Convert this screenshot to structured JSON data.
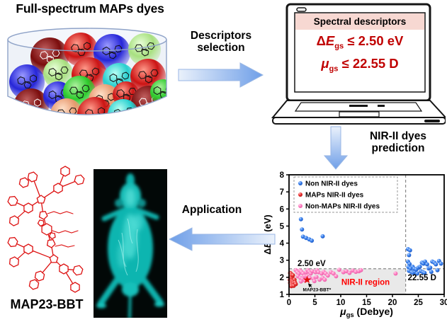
{
  "title": "Full-spectrum MAPs dyes",
  "steps": {
    "descriptors": [
      "Descriptors",
      "selection"
    ],
    "prediction": [
      "NIR-II dyes",
      "prediction"
    ],
    "application": "Application"
  },
  "laptop": {
    "header": "Spectral descriptors",
    "eq1": {
      "delta": "Δ",
      "var": "E",
      "sub": "gs",
      "rest": " ≤ 2.50 eV"
    },
    "eq2": {
      "var": "μ",
      "sub": "gs",
      "rest": " ≤ 22.55 D"
    }
  },
  "molecule_label": "MAP23-BBT",
  "dye_container": {
    "palette": [
      {
        "name": "dark-red",
        "base": "#7a0c0c",
        "light": "#c06060",
        "glyph": "#ffffff"
      },
      {
        "name": "red",
        "base": "#cc1414",
        "light": "#ff9a8a",
        "glyph": "#111111"
      },
      {
        "name": "blue",
        "base": "#2626d8",
        "light": "#9a9aff",
        "glyph": "#111111"
      },
      {
        "name": "green",
        "base": "#2ecc2e",
        "light": "#b0f0a0",
        "glyph": "#111111"
      },
      {
        "name": "light-green",
        "base": "#a8e080",
        "light": "#e8ffd8",
        "glyph": "#111111"
      },
      {
        "name": "cyan",
        "base": "#28cfcf",
        "light": "#b8fff4",
        "glyph": "#111111"
      },
      {
        "name": "peach",
        "base": "#e89a70",
        "light": "#ffe0c8",
        "glyph": "#111111"
      }
    ]
  },
  "chart_data": {
    "type": "scatter",
    "xlabel": {
      "var": "μ",
      "sub": "gs",
      "rest": " (Debye)"
    },
    "ylabel": {
      "delta": "Δ",
      "var": "E",
      "sub": "gs",
      "rest": " (eV)"
    },
    "xlim": [
      0,
      30
    ],
    "ylim": [
      1,
      8
    ],
    "xticks": [
      0,
      5,
      10,
      15,
      20,
      25,
      30
    ],
    "yticks": [
      1,
      2,
      3,
      4,
      5,
      6,
      7,
      8
    ],
    "grid": false,
    "legend_position": "top-left",
    "thresholds": {
      "x": 22.55,
      "y": 2.5
    },
    "threshold_labels": {
      "x": "22.55 D",
      "y": "2.50 eV"
    },
    "region_label": "NIR-II region",
    "region_color": "#ff0000",
    "region_fill": "#e9e9e9",
    "series": [
      {
        "name": "Non NIR-II dyes",
        "color": "#3b82ee",
        "light": "#bcd8ff",
        "dark": "#1c56c0",
        "points": [
          [
            2.3,
            5.4
          ],
          [
            2.5,
            4.8
          ],
          [
            2.7,
            4.38
          ],
          [
            3.3,
            4.3
          ],
          [
            3.9,
            4.22
          ],
          [
            4.4,
            4.15
          ],
          [
            6.5,
            4.4
          ],
          [
            23.0,
            3.65
          ],
          [
            23.4,
            3.58
          ],
          [
            23.2,
            3.3
          ],
          [
            23.0,
            2.92
          ],
          [
            23.3,
            2.78
          ],
          [
            23.1,
            2.6
          ],
          [
            23.5,
            2.52
          ],
          [
            23.2,
            2.38
          ],
          [
            23.7,
            2.3
          ],
          [
            24.0,
            2.26
          ],
          [
            24.3,
            2.32
          ],
          [
            23.9,
            2.62
          ],
          [
            24.2,
            2.5
          ],
          [
            24.6,
            2.46
          ],
          [
            25.0,
            2.56
          ],
          [
            25.3,
            2.62
          ],
          [
            25.7,
            2.86
          ],
          [
            26.0,
            2.8
          ],
          [
            26.3,
            2.92
          ],
          [
            26.7,
            2.76
          ],
          [
            25.5,
            2.36
          ],
          [
            25.9,
            2.3
          ],
          [
            26.2,
            2.26
          ],
          [
            27.0,
            2.52
          ],
          [
            27.3,
            2.56
          ],
          [
            27.7,
            2.92
          ],
          [
            28.1,
            2.86
          ],
          [
            28.4,
            2.76
          ],
          [
            29.0,
            2.96
          ],
          [
            29.4,
            2.8
          ],
          [
            28.7,
            2.42
          ],
          [
            27.5,
            2.32
          ],
          [
            24.8,
            2.22
          ]
        ]
      },
      {
        "name": "MAPs NIR-II dyes",
        "color": "#ee3333",
        "light": "#ffc4c4",
        "dark": "#b81414",
        "points": [
          [
            0.2,
            2.25
          ],
          [
            0.4,
            2.2
          ],
          [
            0.3,
            2.1
          ],
          [
            0.55,
            2.05
          ],
          [
            0.2,
            2.0
          ],
          [
            0.65,
            1.95
          ],
          [
            0.4,
            1.9
          ],
          [
            0.15,
            1.85
          ],
          [
            0.5,
            1.8
          ],
          [
            0.3,
            1.74
          ],
          [
            0.75,
            1.76
          ],
          [
            0.2,
            1.68
          ],
          [
            0.5,
            1.64
          ],
          [
            0.85,
            1.66
          ],
          [
            0.3,
            1.58
          ],
          [
            0.6,
            1.54
          ],
          [
            0.45,
            1.48
          ],
          [
            0.9,
            1.5
          ],
          [
            1.05,
            1.86
          ],
          [
            1.15,
            1.7
          ],
          [
            1.3,
            1.6
          ],
          [
            0.75,
            2.12
          ]
        ]
      },
      {
        "name": "Non-MAPs NIR-II dyes",
        "color": "#ff82c4",
        "light": "#ffdced",
        "dark": "#e85fa8",
        "points": [
          [
            1.3,
            2.42
          ],
          [
            1.6,
            2.3
          ],
          [
            1.9,
            2.22
          ],
          [
            2.1,
            2.4
          ],
          [
            2.4,
            2.32
          ],
          [
            2.7,
            2.22
          ],
          [
            1.7,
            2.06
          ],
          [
            2.2,
            1.96
          ],
          [
            2.6,
            1.9
          ],
          [
            3.0,
            2.06
          ],
          [
            3.3,
            2.3
          ],
          [
            3.6,
            2.42
          ],
          [
            3.9,
            2.32
          ],
          [
            4.2,
            2.22
          ],
          [
            4.5,
            2.36
          ],
          [
            3.5,
            2.06
          ],
          [
            4.0,
            1.96
          ],
          [
            4.7,
            1.92
          ],
          [
            5.1,
            2.3
          ],
          [
            5.4,
            2.42
          ],
          [
            5.7,
            2.3
          ],
          [
            5.3,
            2.02
          ],
          [
            5.9,
            1.86
          ],
          [
            6.3,
            2.22
          ],
          [
            6.7,
            2.32
          ],
          [
            7.1,
            2.22
          ],
          [
            6.5,
            1.96
          ],
          [
            7.5,
            2.1
          ],
          [
            8.1,
            2.3
          ],
          [
            8.6,
            2.22
          ],
          [
            9.1,
            2.06
          ],
          [
            9.7,
            2.44
          ],
          [
            10.5,
            2.3
          ],
          [
            11.1,
            2.36
          ],
          [
            11.7,
            2.26
          ],
          [
            12.3,
            2.4
          ],
          [
            12.9,
            2.32
          ],
          [
            13.5,
            2.36
          ],
          [
            13.9,
            2.42
          ],
          [
            20.6,
            2.22
          ],
          [
            2.3,
            1.76
          ],
          [
            3.1,
            1.82
          ],
          [
            4.9,
            1.78
          ],
          [
            6.9,
            1.86
          ]
        ]
      }
    ],
    "star": {
      "x": 3.5,
      "y": 1.85,
      "label": "MAP23-BBT*",
      "color": "#e01010"
    }
  }
}
